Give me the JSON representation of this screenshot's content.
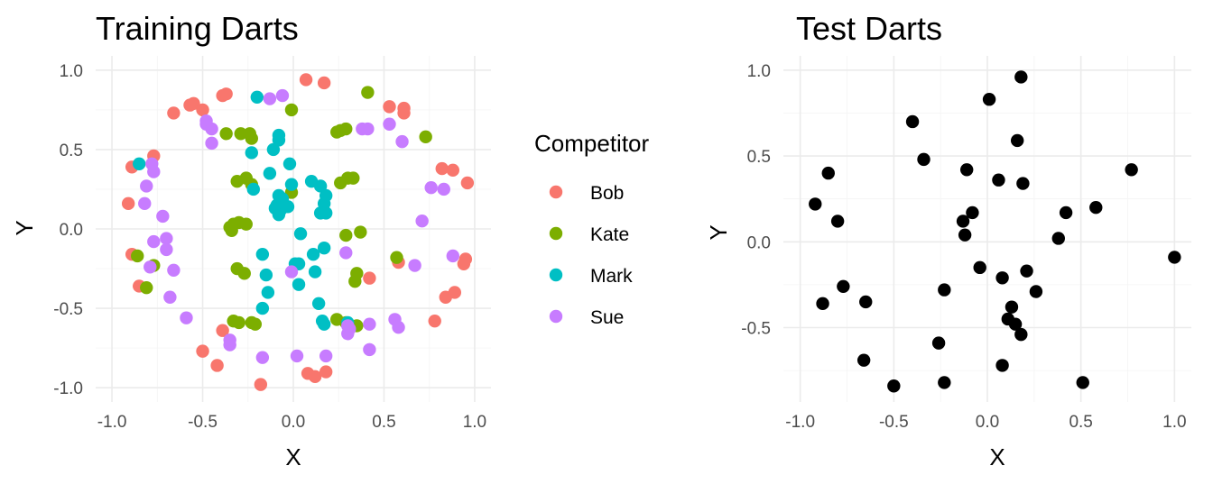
{
  "chart_data": [
    {
      "type": "scatter",
      "title": "Training Darts",
      "xlabel": "X",
      "ylabel": "Y",
      "xlim": [
        -1.0,
        1.0
      ],
      "ylim": [
        -1.0,
        1.0
      ],
      "xticks": [
        -1.0,
        -0.5,
        0.0,
        0.5,
        1.0
      ],
      "yticks": [
        -1.0,
        -0.5,
        0.0,
        0.5,
        1.0
      ],
      "xtick_labels": [
        "-1.0",
        "-0.5",
        "0.0",
        "0.5",
        "1.0"
      ],
      "ytick_labels": [
        "-1.0",
        "-0.5",
        "0.0",
        "0.5",
        "1.0"
      ],
      "grid": true,
      "legend": {
        "title": "Competitor",
        "placement": "right"
      },
      "series": [
        {
          "name": "Bob",
          "color": "#F8766D",
          "points": [
            [
              -0.89,
              0.39
            ],
            [
              -0.91,
              0.16
            ],
            [
              -0.89,
              -0.16
            ],
            [
              -0.85,
              -0.36
            ],
            [
              -0.77,
              0.46
            ],
            [
              -0.66,
              0.73
            ],
            [
              -0.57,
              0.78
            ],
            [
              -0.55,
              0.79
            ],
            [
              -0.5,
              0.75
            ],
            [
              -0.39,
              0.84
            ],
            [
              -0.37,
              0.85
            ],
            [
              -0.39,
              -0.64
            ],
            [
              -0.5,
              -0.77
            ],
            [
              -0.42,
              -0.86
            ],
            [
              -0.18,
              -0.98
            ],
            [
              0.07,
              0.94
            ],
            [
              0.17,
              0.92
            ],
            [
              0.53,
              0.77
            ],
            [
              0.61,
              0.76
            ],
            [
              0.61,
              0.73
            ],
            [
              0.82,
              0.38
            ],
            [
              0.88,
              0.37
            ],
            [
              0.96,
              0.29
            ],
            [
              0.58,
              -0.21
            ],
            [
              0.42,
              -0.31
            ],
            [
              0.78,
              -0.58
            ],
            [
              0.84,
              -0.43
            ],
            [
              0.89,
              -0.4
            ],
            [
              0.94,
              -0.22
            ],
            [
              0.95,
              -0.19
            ],
            [
              0.08,
              -0.91
            ],
            [
              0.12,
              -0.93
            ],
            [
              0.18,
              -0.9
            ]
          ]
        },
        {
          "name": "Kate",
          "color": "#7CAE00",
          "points": [
            [
              -0.37,
              0.6
            ],
            [
              -0.29,
              0.6
            ],
            [
              -0.24,
              0.6
            ],
            [
              -0.23,
              0.57
            ],
            [
              -0.01,
              0.75
            ],
            [
              0.24,
              0.61
            ],
            [
              0.26,
              0.62
            ],
            [
              0.29,
              0.63
            ],
            [
              0.41,
              0.86
            ],
            [
              0.73,
              0.58
            ],
            [
              -0.31,
              0.3
            ],
            [
              -0.26,
              0.32
            ],
            [
              -0.23,
              0.28
            ],
            [
              -0.01,
              0.23
            ],
            [
              0.26,
              0.29
            ],
            [
              0.3,
              0.32
            ],
            [
              0.33,
              0.32
            ],
            [
              -0.35,
              0.01
            ],
            [
              -0.33,
              0.03
            ],
            [
              -0.3,
              0.04
            ],
            [
              -0.26,
              0.03
            ],
            [
              -0.34,
              -0.01
            ],
            [
              0.29,
              -0.04
            ],
            [
              0.37,
              -0.02
            ],
            [
              0.57,
              -0.18
            ],
            [
              -0.31,
              -0.25
            ],
            [
              -0.27,
              -0.28
            ],
            [
              -0.33,
              -0.58
            ],
            [
              -0.3,
              -0.59
            ],
            [
              -0.23,
              -0.59
            ],
            [
              -0.21,
              -0.6
            ],
            [
              0.24,
              -0.57
            ],
            [
              0.29,
              -0.59
            ],
            [
              0.35,
              -0.61
            ],
            [
              0.34,
              -0.33
            ],
            [
              0.35,
              -0.28
            ],
            [
              -0.86,
              -0.17
            ],
            [
              -0.77,
              -0.23
            ],
            [
              -0.81,
              -0.37
            ]
          ]
        },
        {
          "name": "Mark",
          "color": "#00BFC4",
          "points": [
            [
              -0.2,
              0.83
            ],
            [
              -0.23,
              0.48
            ],
            [
              -0.11,
              0.5
            ],
            [
              -0.08,
              0.56
            ],
            [
              -0.08,
              0.59
            ],
            [
              -0.13,
              0.35
            ],
            [
              -0.02,
              0.41
            ],
            [
              -0.22,
              0.25
            ],
            [
              -0.01,
              0.28
            ],
            [
              0.1,
              0.3
            ],
            [
              0.15,
              0.27
            ],
            [
              0.18,
              0.21
            ],
            [
              -0.08,
              0.21
            ],
            [
              -0.06,
              0.19
            ],
            [
              -0.09,
              0.15
            ],
            [
              -0.1,
              0.13
            ],
            [
              -0.07,
              0.12
            ],
            [
              -0.05,
              0.14
            ],
            [
              -0.03,
              0.14
            ],
            [
              -0.08,
              0.09
            ],
            [
              0.17,
              0.16
            ],
            [
              0.18,
              0.1
            ],
            [
              0.15,
              0.1
            ],
            [
              0.04,
              -0.03
            ],
            [
              0.11,
              -0.16
            ],
            [
              0.17,
              -0.12
            ],
            [
              -0.17,
              -0.16
            ],
            [
              0.01,
              -0.22
            ],
            [
              0.03,
              -0.22
            ],
            [
              -0.15,
              -0.29
            ],
            [
              0.12,
              -0.27
            ],
            [
              0.03,
              -0.35
            ],
            [
              -0.14,
              -0.4
            ],
            [
              -0.17,
              -0.5
            ],
            [
              0.14,
              -0.47
            ],
            [
              0.16,
              -0.58
            ],
            [
              0.17,
              -0.6
            ],
            [
              0.3,
              -0.59
            ],
            [
              -0.85,
              0.41
            ]
          ]
        },
        {
          "name": "Sue",
          "color": "#C77CFF",
          "points": [
            [
              -0.13,
              0.82
            ],
            [
              -0.06,
              0.84
            ],
            [
              0.41,
              0.63
            ],
            [
              0.38,
              0.63
            ],
            [
              0.53,
              0.66
            ],
            [
              0.6,
              0.55
            ],
            [
              -0.48,
              0.68
            ],
            [
              -0.48,
              0.66
            ],
            [
              -0.45,
              0.63
            ],
            [
              -0.45,
              0.54
            ],
            [
              -0.78,
              0.41
            ],
            [
              -0.77,
              0.36
            ],
            [
              -0.81,
              0.27
            ],
            [
              -0.82,
              0.16
            ],
            [
              -0.72,
              0.08
            ],
            [
              -0.77,
              -0.08
            ],
            [
              -0.7,
              -0.06
            ],
            [
              -0.7,
              -0.13
            ],
            [
              -0.66,
              -0.26
            ],
            [
              -0.79,
              -0.24
            ],
            [
              -0.68,
              -0.43
            ],
            [
              -0.59,
              -0.56
            ],
            [
              -0.35,
              -0.7
            ],
            [
              -0.35,
              -0.73
            ],
            [
              -0.17,
              -0.81
            ],
            [
              0.02,
              -0.8
            ],
            [
              0.18,
              -0.8
            ],
            [
              0.3,
              -0.66
            ],
            [
              0.31,
              -0.63
            ],
            [
              0.42,
              -0.6
            ],
            [
              0.42,
              -0.76
            ],
            [
              0.56,
              -0.57
            ],
            [
              0.58,
              -0.62
            ],
            [
              0.67,
              -0.23
            ],
            [
              0.88,
              -0.17
            ],
            [
              0.71,
              0.05
            ],
            [
              0.76,
              0.26
            ],
            [
              0.83,
              0.25
            ],
            [
              -0.01,
              -0.27
            ],
            [
              0.29,
              -0.15
            ],
            [
              0.3,
              -0.61
            ]
          ]
        }
      ]
    },
    {
      "type": "scatter",
      "title": "Test Darts",
      "xlabel": "X",
      "ylabel": "Y",
      "xlim": [
        -1.0,
        1.0
      ],
      "ylim": [
        -0.85,
        1.0
      ],
      "xticks": [
        -1.0,
        -0.5,
        0.0,
        0.5,
        1.0
      ],
      "yticks": [
        -0.5,
        0.0,
        0.5,
        1.0
      ],
      "xtick_labels": [
        "-1.0",
        "-0.5",
        "0.0",
        "0.5",
        "1.0"
      ],
      "ytick_labels": [
        "-0.5",
        "0.0",
        "0.5",
        "1.0"
      ],
      "grid": true,
      "legend": null,
      "series": [
        {
          "color": "#000000",
          "points": [
            [
              0.18,
              0.96
            ],
            [
              0.01,
              0.83
            ],
            [
              -0.4,
              0.7
            ],
            [
              0.16,
              0.59
            ],
            [
              -0.34,
              0.48
            ],
            [
              -0.11,
              0.42
            ],
            [
              0.06,
              0.36
            ],
            [
              0.19,
              0.34
            ],
            [
              0.77,
              0.42
            ],
            [
              -0.85,
              0.4
            ],
            [
              -0.92,
              0.22
            ],
            [
              -0.8,
              0.12
            ],
            [
              -0.08,
              0.17
            ],
            [
              -0.13,
              0.12
            ],
            [
              -0.12,
              0.04
            ],
            [
              0.42,
              0.17
            ],
            [
              0.58,
              0.2
            ],
            [
              0.38,
              0.02
            ],
            [
              1.0,
              -0.09
            ],
            [
              -0.04,
              -0.15
            ],
            [
              0.08,
              -0.21
            ],
            [
              0.21,
              -0.17
            ],
            [
              -0.23,
              -0.28
            ],
            [
              0.26,
              -0.29
            ],
            [
              -0.77,
              -0.26
            ],
            [
              -0.88,
              -0.36
            ],
            [
              -0.65,
              -0.35
            ],
            [
              0.13,
              -0.38
            ],
            [
              0.11,
              -0.45
            ],
            [
              0.15,
              -0.48
            ],
            [
              0.18,
              -0.54
            ],
            [
              -0.26,
              -0.59
            ],
            [
              -0.66,
              -0.69
            ],
            [
              0.08,
              -0.72
            ],
            [
              -0.23,
              -0.82
            ],
            [
              -0.5,
              -0.84
            ],
            [
              0.51,
              -0.82
            ]
          ]
        }
      ]
    }
  ]
}
